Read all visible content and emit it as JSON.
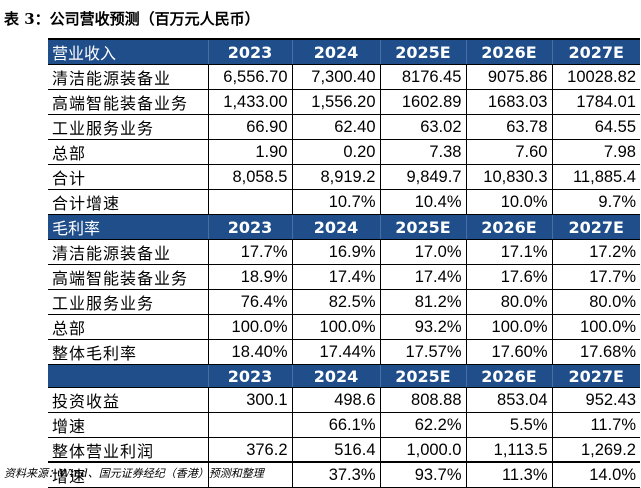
{
  "title": "表 3：公司营收预测（百万元人民币）",
  "footnote": "资料来源：Wind、国元证券经纪（香港）预测和整理",
  "sections": [
    {
      "header": [
        "营业收入",
        "2023",
        "2024",
        "2025E",
        "2026E",
        "2027E"
      ],
      "rows": [
        [
          "清洁能源装备业",
          "6,556.70",
          "7,300.40",
          "8176.45",
          "9075.86",
          "10028.82"
        ],
        [
          "高端智能装备业务",
          "1,433.00",
          "1,556.20",
          "1602.89",
          "1683.03",
          "1784.01"
        ],
        [
          "工业服务业务",
          "66.90",
          "62.40",
          "63.02",
          "63.78",
          "64.55"
        ],
        [
          "总部",
          "1.90",
          "0.20",
          "7.38",
          "7.60",
          "7.98"
        ],
        [
          "合计",
          "8,058.5",
          "8,919.2",
          "9,849.7",
          "10,830.3",
          "11,885.4"
        ],
        [
          "合计增速",
          "",
          "10.7%",
          "10.4%",
          "10.0%",
          "9.7%"
        ]
      ]
    },
    {
      "header": [
        "毛利率",
        "2023",
        "2024",
        "2025E",
        "2026E",
        "2027E"
      ],
      "rows": [
        [
          "清洁能源装备业",
          "17.7%",
          "16.9%",
          "17.0%",
          "17.1%",
          "17.2%"
        ],
        [
          "高端智能装备业务",
          "18.9%",
          "17.4%",
          "17.4%",
          "17.6%",
          "17.7%"
        ],
        [
          "工业服务业务",
          "76.4%",
          "82.5%",
          "81.2%",
          "80.0%",
          "80.0%"
        ],
        [
          "总部",
          "100.0%",
          "100.0%",
          "93.2%",
          "100.0%",
          "100.0%"
        ],
        [
          "整体毛利率",
          "18.40%",
          "17.44%",
          "17.57%",
          "17.60%",
          "17.68%"
        ]
      ]
    },
    {
      "header": [
        "",
        "2023",
        "2024",
        "2025E",
        "2026E",
        "2027E"
      ],
      "rows": [
        [
          "投资收益",
          "300.1",
          "498.6",
          "808.88",
          "853.04",
          "952.43"
        ],
        [
          "增速",
          "",
          "66.1%",
          "62.2%",
          "5.5%",
          "11.7%"
        ],
        [
          "整体营业利润",
          "376.2",
          "516.4",
          "1,000.0",
          "1,113.5",
          "1,269.2"
        ],
        [
          "增速",
          "",
          "37.3%",
          "93.7%",
          "11.3%",
          "14.0%"
        ]
      ]
    }
  ]
}
